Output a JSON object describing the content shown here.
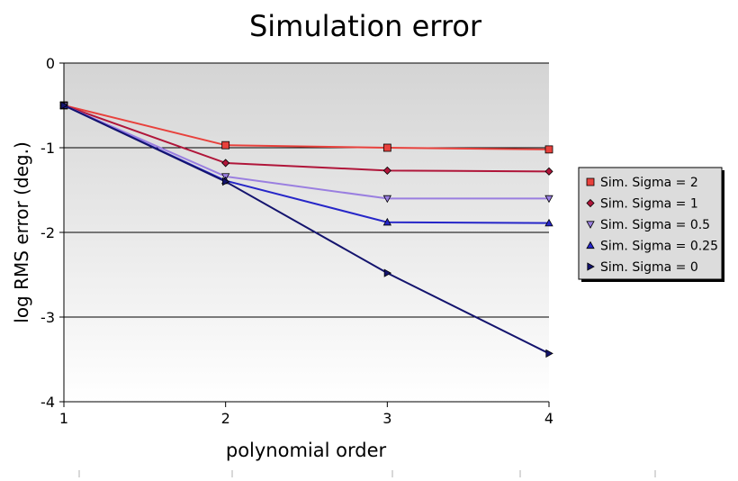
{
  "chart_data": {
    "type": "line",
    "title": "Simulation error",
    "xlabel": "polynomial order",
    "ylabel": "log RMS error (deg.)",
    "x": [
      1,
      2,
      3,
      4
    ],
    "xlim": [
      1,
      4
    ],
    "ylim": [
      -4,
      0
    ],
    "xticks": [
      "1",
      "2",
      "3",
      "4"
    ],
    "yticks": [
      "0",
      "-1",
      "-2",
      "-3",
      "-4"
    ],
    "grid": "horizontal",
    "background": "vertical gradient, light gray to white",
    "legend_position": "right",
    "series": [
      {
        "name": "Sim. Sigma = 2",
        "values": [
          -0.5,
          -0.97,
          -1.0,
          -1.02
        ],
        "color": "#e8413c",
        "line_color": "#e8413c",
        "marker": "square"
      },
      {
        "name": "Sim. Sigma = 1",
        "values": [
          -0.5,
          -1.18,
          -1.27,
          -1.28
        ],
        "color": "#b0163a",
        "line_color": "#b0163a",
        "marker": "diamond"
      },
      {
        "name": "Sim. Sigma = 0.5",
        "values": [
          -0.5,
          -1.34,
          -1.6,
          -1.6
        ],
        "color": "#9a7fe0",
        "line_color": "#9a7fe0",
        "marker": "triangle-down"
      },
      {
        "name": "Sim. Sigma = 0.25",
        "values": [
          -0.5,
          -1.39,
          -1.88,
          -1.89
        ],
        "color": "#2626c8",
        "line_color": "#2626c8",
        "marker": "triangle-up"
      },
      {
        "name": "Sim. Sigma = 0",
        "values": [
          -0.5,
          -1.4,
          -2.48,
          -3.43
        ],
        "color": "#14146e",
        "line_color": "#14146e",
        "marker": "triangle-right"
      }
    ]
  }
}
